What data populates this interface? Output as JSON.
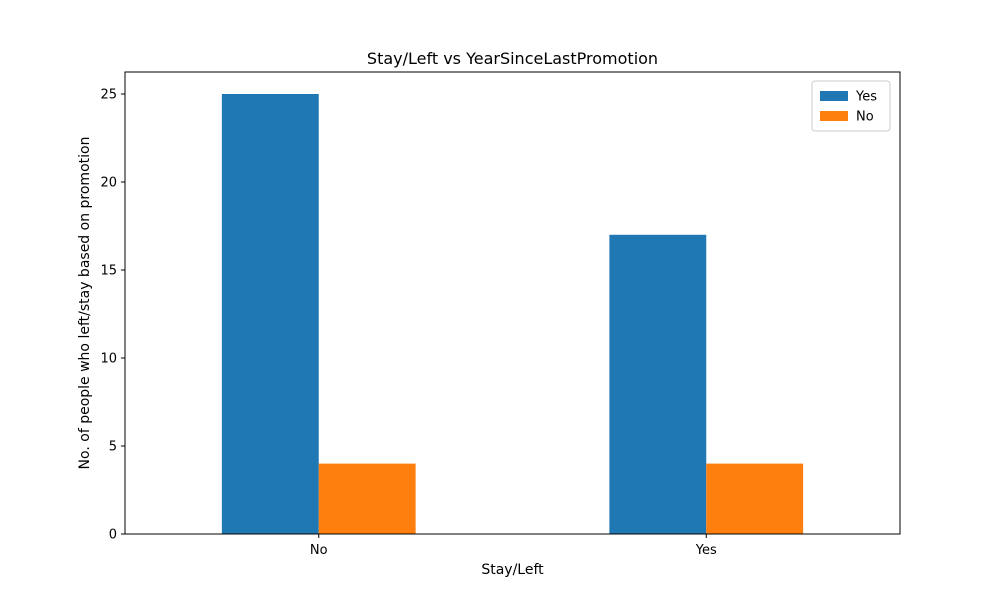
{
  "chart_data": {
    "type": "bar",
    "title": "Stay/Left vs YearSinceLastPromotion",
    "xlabel": "Stay/Left",
    "ylabel": "No. of people who left/stay based on promotion",
    "categories": [
      "No",
      "Yes"
    ],
    "series": [
      {
        "name": "Yes",
        "values": [
          25,
          17
        ],
        "color": "#1f77b4"
      },
      {
        "name": "No",
        "values": [
          4,
          4
        ],
        "color": "#ff7f0e"
      }
    ],
    "ylim": [
      0,
      26.25
    ],
    "yticks": [
      0,
      5,
      10,
      15,
      20,
      25
    ],
    "grid": false,
    "legend_position": "top-right"
  }
}
